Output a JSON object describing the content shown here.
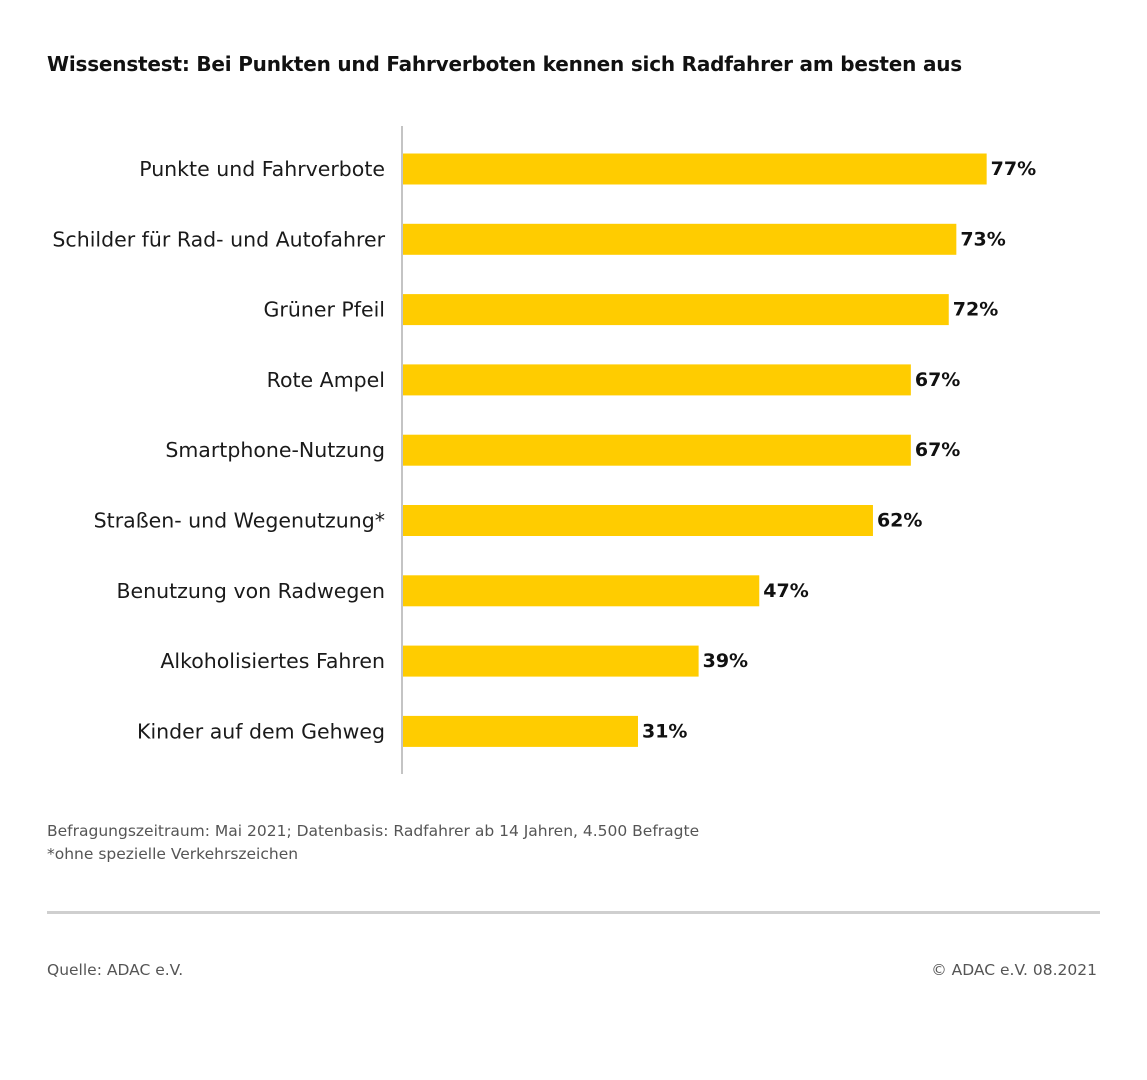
{
  "chart_data": {
    "type": "bar",
    "orientation": "horizontal",
    "title": "Wissenstest: Bei Punkten und Fahrverboten kennen sich Radfahrer am besten aus",
    "categories": [
      "Punkte und Fahrverbote",
      "Schilder für Rad- und Autofahrer",
      "Grüner Pfeil",
      "Rote Ampel",
      "Smartphone-Nutzung",
      "Straßen- und Wegenutzung*",
      "Benutzung von Radwegen",
      "Alkoholisiertes Fahren",
      "Kinder auf dem Gehweg"
    ],
    "values": [
      77,
      73,
      72,
      67,
      67,
      62,
      47,
      39,
      31
    ],
    "value_labels": [
      "77%",
      "73%",
      "72%",
      "67%",
      "67%",
      "62%",
      "47%",
      "39%",
      "31%"
    ],
    "unit": "%",
    "xlim": [
      0,
      100
    ],
    "xlabel": "",
    "ylabel": "",
    "grid": false,
    "bar_color": "#ffcc00"
  },
  "notes": {
    "line1": "Befragungszeitraum: Mai 2021; Datenbasis: Radfahrer ab 14 Jahren, 4.500 Befragte",
    "line2": "*ohne spezielle Verkehrszeichen"
  },
  "footer": {
    "source": "Quelle: ADAC e.V.",
    "copyright": "© ADAC e.V. 08.2021"
  }
}
